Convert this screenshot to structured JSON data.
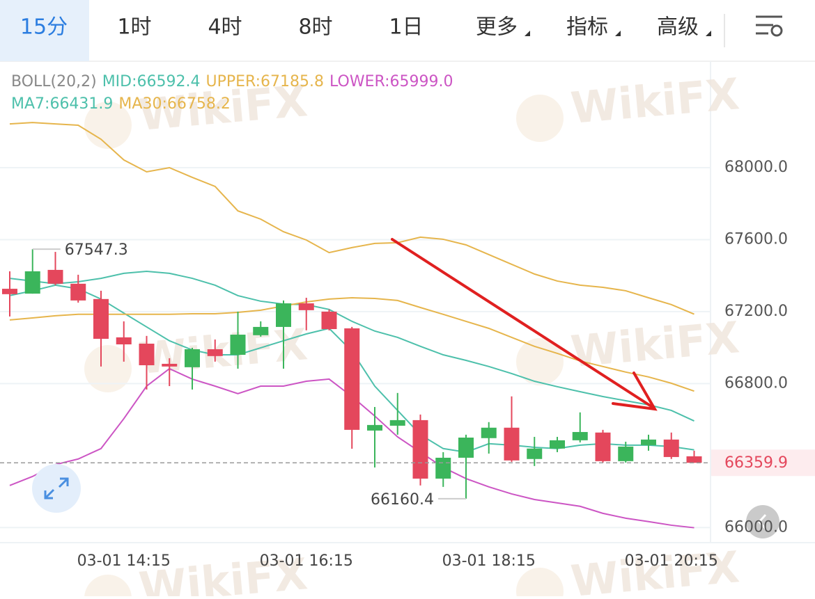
{
  "tabs": [
    {
      "label": "15分"
    },
    {
      "label": "1时"
    },
    {
      "label": "4时"
    },
    {
      "label": "8时"
    },
    {
      "label": "1日"
    },
    {
      "label": "更多",
      "menu": true
    },
    {
      "label": "指标",
      "menu": true
    },
    {
      "label": "高级",
      "menu": true
    }
  ],
  "active_tab": 0,
  "watermark": "WikiFX",
  "chart_data": {
    "type": "candlestick",
    "indicator": "BOLL(20,2)",
    "categories": [
      null,
      null,
      null,
      null,
      null,
      "03-01 14:15",
      null,
      null,
      null,
      null,
      null,
      null,
      null,
      "03-01 16:15",
      null,
      null,
      null,
      null,
      null,
      null,
      null,
      "03-01 18:15",
      null,
      null,
      null,
      null,
      null,
      null,
      null,
      "03-01 20:15",
      null
    ],
    "open": [
      67327,
      67300,
      67432,
      67355,
      67270,
      67057,
      67022,
      66910,
      66891,
      66991,
      66960,
      67069,
      67115,
      67246,
      67200,
      67107,
      66539,
      66566,
      66597,
      66272,
      66388,
      66497,
      66555,
      66381,
      66439,
      66485,
      66528,
      66369,
      66458,
      66489,
      66396
    ],
    "high": [
      67424,
      67547.3,
      67532,
      67405,
      67316,
      67146,
      67065,
      66941,
      66999,
      67045,
      67200,
      67146,
      67262,
      67277,
      67212,
      67115,
      66670,
      66748,
      66628,
      66419,
      66516,
      66586,
      66729,
      66504,
      66504,
      66640,
      66543,
      66477,
      66516,
      66528,
      66427
    ],
    "low": [
      67173,
      67300,
      67347,
      67250,
      66895,
      66922,
      66767,
      66786,
      66767,
      66922,
      66883,
      67061,
      66883,
      67096,
      67096,
      66438,
      66334,
      66516,
      66234,
      66226,
      66160.4,
      66411,
      66365,
      66342,
      66419,
      66473,
      66361,
      66361,
      66427,
      66381,
      66359.9
    ],
    "close": [
      67297,
      67424,
      67355,
      67262,
      67049,
      67018,
      66902,
      66895,
      66991,
      66953,
      67072,
      67115,
      67246,
      67208,
      67103,
      66543,
      66570,
      66597,
      66272,
      66388,
      66500,
      66555,
      66373,
      66439,
      66485,
      66531,
      66369,
      66450,
      66489,
      66392,
      66359.9
    ],
    "up_color": "#3bb55b",
    "down_color": "#e4475c",
    "series": [
      {
        "label": "MID:66592.4",
        "color": "#4dc0ab",
        "values": [
          67385,
          67370,
          67355,
          67366,
          67385,
          67413,
          67424,
          67413,
          67385,
          67347,
          67289,
          67258,
          67242,
          67239,
          67212,
          67146,
          67092,
          67057,
          67007,
          66960,
          66929,
          66895,
          66856,
          66813,
          66783,
          66755,
          66728,
          66705,
          66682,
          66651,
          66592.4
        ]
      },
      {
        "label": "UPPER:67185.8",
        "color": "#e6b54c",
        "values": [
          68243,
          68251,
          68243,
          68236,
          68158,
          68043,
          67977,
          68000,
          67946,
          67896,
          67760,
          67714,
          67644,
          67598,
          67528,
          67556,
          67579,
          67583,
          67614,
          67602,
          67571,
          67517,
          67463,
          67409,
          67370,
          67347,
          67335,
          67316,
          67277,
          67239,
          67185.8
        ]
      },
      {
        "label": "LOWER:65999.0",
        "color": "#cc55c4",
        "values": [
          66234,
          66284,
          66350,
          66381,
          66439,
          66605,
          66786,
          66883,
          66825,
          66786,
          66744,
          66786,
          66786,
          66813,
          66825,
          66728,
          66620,
          66504,
          66419,
          66334,
          66272,
          66226,
          66187,
          66156,
          66137,
          66118,
          66079,
          66052,
          66033,
          66013,
          65999.0
        ]
      },
      {
        "label": "MA7:66431.9",
        "color": "#4dc0ab",
        "values": [
          67289,
          67316,
          67347,
          67327,
          67270,
          67192,
          67115,
          67038,
          66987,
          66960,
          66960,
          66999,
          67038,
          67076,
          67107,
          66980,
          66786,
          66651,
          66516,
          66439,
          66419,
          66466,
          66458,
          66446,
          66439,
          66458,
          66466,
          66458,
          66458,
          66450,
          66431.9
        ]
      },
      {
        "label": "MA30:66758.2",
        "color": "#e6b54c",
        "values": [
          67154,
          67165,
          67177,
          67185,
          67185,
          67185,
          67185,
          67185,
          67188,
          67188,
          67196,
          67208,
          67231,
          67254,
          67270,
          67277,
          67273,
          67262,
          67223,
          67185,
          67146,
          67107,
          67057,
          67007,
          66968,
          66926,
          66895,
          66864,
          66837,
          66802,
          66758.2
        ]
      }
    ],
    "high_label": "67547.3",
    "low_label": "66160.4",
    "last_price": {
      "value": 66359.9,
      "label": "66359.9"
    },
    "ylim": [
      65920,
      68580
    ],
    "yticks": [
      {
        "value": 66000,
        "label": "66000.0"
      },
      {
        "value": 66800,
        "label": "66800.0"
      },
      {
        "value": 67200,
        "label": "67200.0"
      },
      {
        "value": 67600,
        "label": "67600.0"
      },
      {
        "value": 68000,
        "label": "68000.0"
      }
    ],
    "grid": true
  }
}
